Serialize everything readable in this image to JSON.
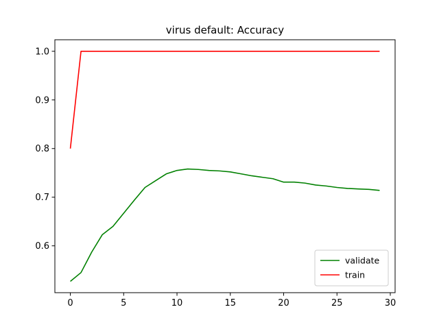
{
  "chart_data": {
    "type": "line",
    "title": "virus default: Accuracy",
    "xlabel": "",
    "ylabel": "",
    "xlim": [
      -1.45,
      30.45
    ],
    "ylim": [
      0.5037,
      1.0237
    ],
    "xticks": [
      0,
      5,
      10,
      15,
      20,
      25,
      30
    ],
    "yticks": [
      0.6,
      0.7,
      0.8,
      0.9,
      1.0
    ],
    "xtick_labels": [
      "0",
      "5",
      "10",
      "15",
      "20",
      "25",
      "30"
    ],
    "ytick_labels": [
      "0.6",
      "0.7",
      "0.8",
      "0.9",
      "1.0"
    ],
    "grid": false,
    "legend_position": "lower-right",
    "series": [
      {
        "name": "validate",
        "color": "#008000",
        "x": [
          0,
          1,
          2,
          3,
          4,
          5,
          6,
          7,
          8,
          9,
          10,
          11,
          12,
          13,
          14,
          15,
          16,
          17,
          18,
          19,
          20,
          21,
          22,
          23,
          24,
          25,
          26,
          27,
          28,
          29
        ],
        "values": [
          0.527,
          0.545,
          0.587,
          0.623,
          0.64,
          0.667,
          0.694,
          0.72,
          0.734,
          0.748,
          0.755,
          0.758,
          0.757,
          0.755,
          0.754,
          0.752,
          0.748,
          0.744,
          0.741,
          0.738,
          0.731,
          0.731,
          0.729,
          0.725,
          0.723,
          0.72,
          0.718,
          0.717,
          0.716,
          0.714
        ]
      },
      {
        "name": "train",
        "color": "#ff0000",
        "x": [
          0,
          1,
          2,
          3,
          4,
          5,
          6,
          7,
          8,
          9,
          10,
          11,
          12,
          13,
          14,
          15,
          16,
          17,
          18,
          19,
          20,
          21,
          22,
          23,
          24,
          25,
          26,
          27,
          28,
          29
        ],
        "values": [
          0.8,
          1.0,
          1.0,
          1.0,
          1.0,
          1.0,
          1.0,
          1.0,
          1.0,
          1.0,
          1.0,
          1.0,
          1.0,
          1.0,
          1.0,
          1.0,
          1.0,
          1.0,
          1.0,
          1.0,
          1.0,
          1.0,
          1.0,
          1.0,
          1.0,
          1.0,
          1.0,
          1.0,
          1.0,
          1.0
        ]
      }
    ]
  }
}
